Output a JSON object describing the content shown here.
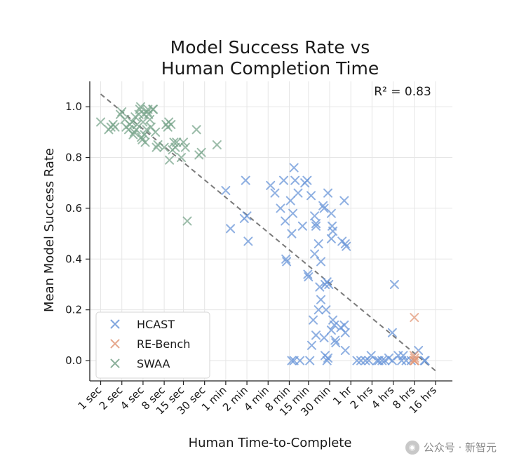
{
  "watermark": "公众号 · 新智元",
  "chart_data": {
    "type": "scatter",
    "title": [
      "Model Success Rate vs",
      "Human Completion Time"
    ],
    "xlabel": "Human Time-to-Complete",
    "ylabel": "Mean Model Success Rate",
    "x_scale": "log",
    "x_unit": "seconds",
    "x_ticks": [
      {
        "value": 1,
        "label": "1 sec"
      },
      {
        "value": 2,
        "label": "2 sec"
      },
      {
        "value": 4,
        "label": "4 sec"
      },
      {
        "value": 8,
        "label": "8 sec"
      },
      {
        "value": 15,
        "label": "15 sec"
      },
      {
        "value": 30,
        "label": "30 sec"
      },
      {
        "value": 60,
        "label": "1 min"
      },
      {
        "value": 120,
        "label": "2 min"
      },
      {
        "value": 240,
        "label": "4 min"
      },
      {
        "value": 480,
        "label": "8 min"
      },
      {
        "value": 900,
        "label": "15 min"
      },
      {
        "value": 1800,
        "label": "30 min"
      },
      {
        "value": 3600,
        "label": "1 hr"
      },
      {
        "value": 7200,
        "label": "2 hrs"
      },
      {
        "value": 14400,
        "label": "4 hrs"
      },
      {
        "value": 28800,
        "label": "8 hrs"
      },
      {
        "value": 57600,
        "label": "16 hrs"
      }
    ],
    "xlim": [
      0.7,
      100000
    ],
    "ylim": [
      -0.08,
      1.1
    ],
    "y_ticks": [
      {
        "value": 0.0,
        "label": "0.0"
      },
      {
        "value": 0.2,
        "label": "0.2"
      },
      {
        "value": 0.4,
        "label": "0.4"
      },
      {
        "value": 0.6,
        "label": "0.6"
      },
      {
        "value": 0.8,
        "label": "0.8"
      },
      {
        "value": 1.0,
        "label": "1.0"
      }
    ],
    "annotation": "R² = 0.83",
    "legend_position": "lower-left",
    "fit_line": {
      "x": [
        1,
        57600
      ],
      "y": [
        1.05,
        -0.04
      ]
    },
    "series": [
      {
        "name": "HCAST",
        "color": "#6a96d8",
        "points": [
          [
            60,
            0.67
          ],
          [
            70,
            0.52
          ],
          [
            110,
            0.56
          ],
          [
            120,
            0.57
          ],
          [
            115,
            0.71
          ],
          [
            125,
            0.47
          ],
          [
            260,
            0.69
          ],
          [
            300,
            0.66
          ],
          [
            400,
            0.71
          ],
          [
            360,
            0.6
          ],
          [
            560,
            0.76
          ],
          [
            580,
            0.71
          ],
          [
            500,
            0.63
          ],
          [
            640,
            0.66
          ],
          [
            540,
            0.58
          ],
          [
            520,
            0.5
          ],
          [
            420,
            0.55
          ],
          [
            440,
            0.39
          ],
          [
            430,
            0.4
          ],
          [
            800,
            0.7
          ],
          [
            860,
            0.71
          ],
          [
            740,
            0.53
          ],
          [
            980,
            0.65
          ],
          [
            1100,
            0.57
          ],
          [
            1150,
            0.54
          ],
          [
            1150,
            0.53
          ],
          [
            1250,
            0.46
          ],
          [
            1450,
            0.61
          ],
          [
            1500,
            0.6
          ],
          [
            1350,
            0.39
          ],
          [
            1100,
            0.42
          ],
          [
            1700,
            0.66
          ],
          [
            1900,
            0.58
          ],
          [
            1950,
            0.53
          ],
          [
            2000,
            0.51
          ],
          [
            1900,
            0.48
          ],
          [
            2700,
            0.47
          ],
          [
            3100,
            0.45
          ],
          [
            3000,
            0.46
          ],
          [
            2900,
            0.63
          ],
          [
            880,
            0.34
          ],
          [
            900,
            0.33
          ],
          [
            1050,
            0.16
          ],
          [
            1150,
            0.1
          ],
          [
            1250,
            0.2
          ],
          [
            1350,
            0.24
          ],
          [
            1550,
            0.3
          ],
          [
            1600,
            0.2
          ],
          [
            1650,
            0.31
          ],
          [
            1750,
            0.3
          ],
          [
            1900,
            0.12
          ],
          [
            2000,
            0.16
          ],
          [
            2100,
            0.14
          ],
          [
            2150,
            0.08
          ],
          [
            2200,
            0.07
          ],
          [
            2600,
            0.13
          ],
          [
            2900,
            0.14
          ],
          [
            3000,
            0.11
          ],
          [
            3000,
            0.04
          ],
          [
            1300,
            0.29
          ],
          [
            1500,
            0.09
          ],
          [
            1000,
            0.06
          ],
          [
            1550,
            0.02
          ],
          [
            1650,
            0.0
          ],
          [
            1700,
            0.01
          ],
          [
            520,
            0.0
          ],
          [
            560,
            0.0
          ],
          [
            680,
            0.0
          ],
          [
            940,
            0.0
          ],
          [
            4400,
            0.0
          ],
          [
            5000,
            0.0
          ],
          [
            5800,
            0.0
          ],
          [
            6500,
            0.0
          ],
          [
            7000,
            0.02
          ],
          [
            8500,
            0.0
          ],
          [
            9000,
            0.0
          ],
          [
            10000,
            0.0
          ],
          [
            11000,
            0.0
          ],
          [
            12500,
            0.01
          ],
          [
            14000,
            0.0
          ],
          [
            15000,
            0.3
          ],
          [
            14000,
            0.11
          ],
          [
            17000,
            0.02
          ],
          [
            20000,
            0.02
          ],
          [
            22000,
            0.0
          ],
          [
            26000,
            0.0
          ],
          [
            33000,
            0.04
          ],
          [
            40000,
            0.0
          ],
          [
            41000,
            0.0
          ],
          [
            19000,
            0.0
          ]
        ]
      },
      {
        "name": "RE-Bench",
        "color": "#e39a7a",
        "points": [
          [
            28800,
            0.17
          ],
          [
            28500,
            0.02
          ],
          [
            29000,
            0.01
          ],
          [
            28800,
            0.0
          ],
          [
            28600,
            0.0
          ],
          [
            29200,
            0.0
          ]
        ]
      },
      {
        "name": "SWAA",
        "color": "#7aa58c",
        "points": [
          [
            1.0,
            0.94
          ],
          [
            1.3,
            0.91
          ],
          [
            1.4,
            0.92
          ],
          [
            1.5,
            0.93
          ],
          [
            1.6,
            0.92
          ],
          [
            1.9,
            0.97
          ],
          [
            2.0,
            0.98
          ],
          [
            2.2,
            0.95
          ],
          [
            2.3,
            0.92
          ],
          [
            2.5,
            0.91
          ],
          [
            2.6,
            0.93
          ],
          [
            2.8,
            0.94
          ],
          [
            2.9,
            0.89
          ],
          [
            3.0,
            0.9
          ],
          [
            3.1,
            0.96
          ],
          [
            3.2,
            0.91
          ],
          [
            3.3,
            0.93
          ],
          [
            3.5,
            0.97
          ],
          [
            3.6,
            0.99
          ],
          [
            3.7,
            1.0
          ],
          [
            3.8,
            0.88
          ],
          [
            3.9,
            0.87
          ],
          [
            4.0,
            0.94
          ],
          [
            4.1,
            0.97
          ],
          [
            4.2,
            0.89
          ],
          [
            4.3,
            0.86
          ],
          [
            4.5,
            0.91
          ],
          [
            4.6,
            0.98
          ],
          [
            4.7,
            0.99
          ],
          [
            4.8,
            0.97
          ],
          [
            5.0,
            0.95
          ],
          [
            5.2,
            0.92
          ],
          [
            5.5,
            0.99
          ],
          [
            5.6,
            0.99
          ],
          [
            6.0,
            0.9
          ],
          [
            6.2,
            0.84
          ],
          [
            6.5,
            0.85
          ],
          [
            8.0,
            0.84
          ],
          [
            8.5,
            0.93
          ],
          [
            9.0,
            0.92
          ],
          [
            9.3,
            0.94
          ],
          [
            10.0,
            0.93
          ],
          [
            9.5,
            0.79
          ],
          [
            10.5,
            0.83
          ],
          [
            11.0,
            0.86
          ],
          [
            11.5,
            0.84
          ],
          [
            12.0,
            0.86
          ],
          [
            14.0,
            0.8
          ],
          [
            16.0,
            0.84
          ],
          [
            15.0,
            0.86
          ],
          [
            17.0,
            0.55
          ],
          [
            23.0,
            0.91
          ],
          [
            25.0,
            0.81
          ],
          [
            27.0,
            0.82
          ],
          [
            45.0,
            0.85
          ]
        ]
      }
    ]
  }
}
